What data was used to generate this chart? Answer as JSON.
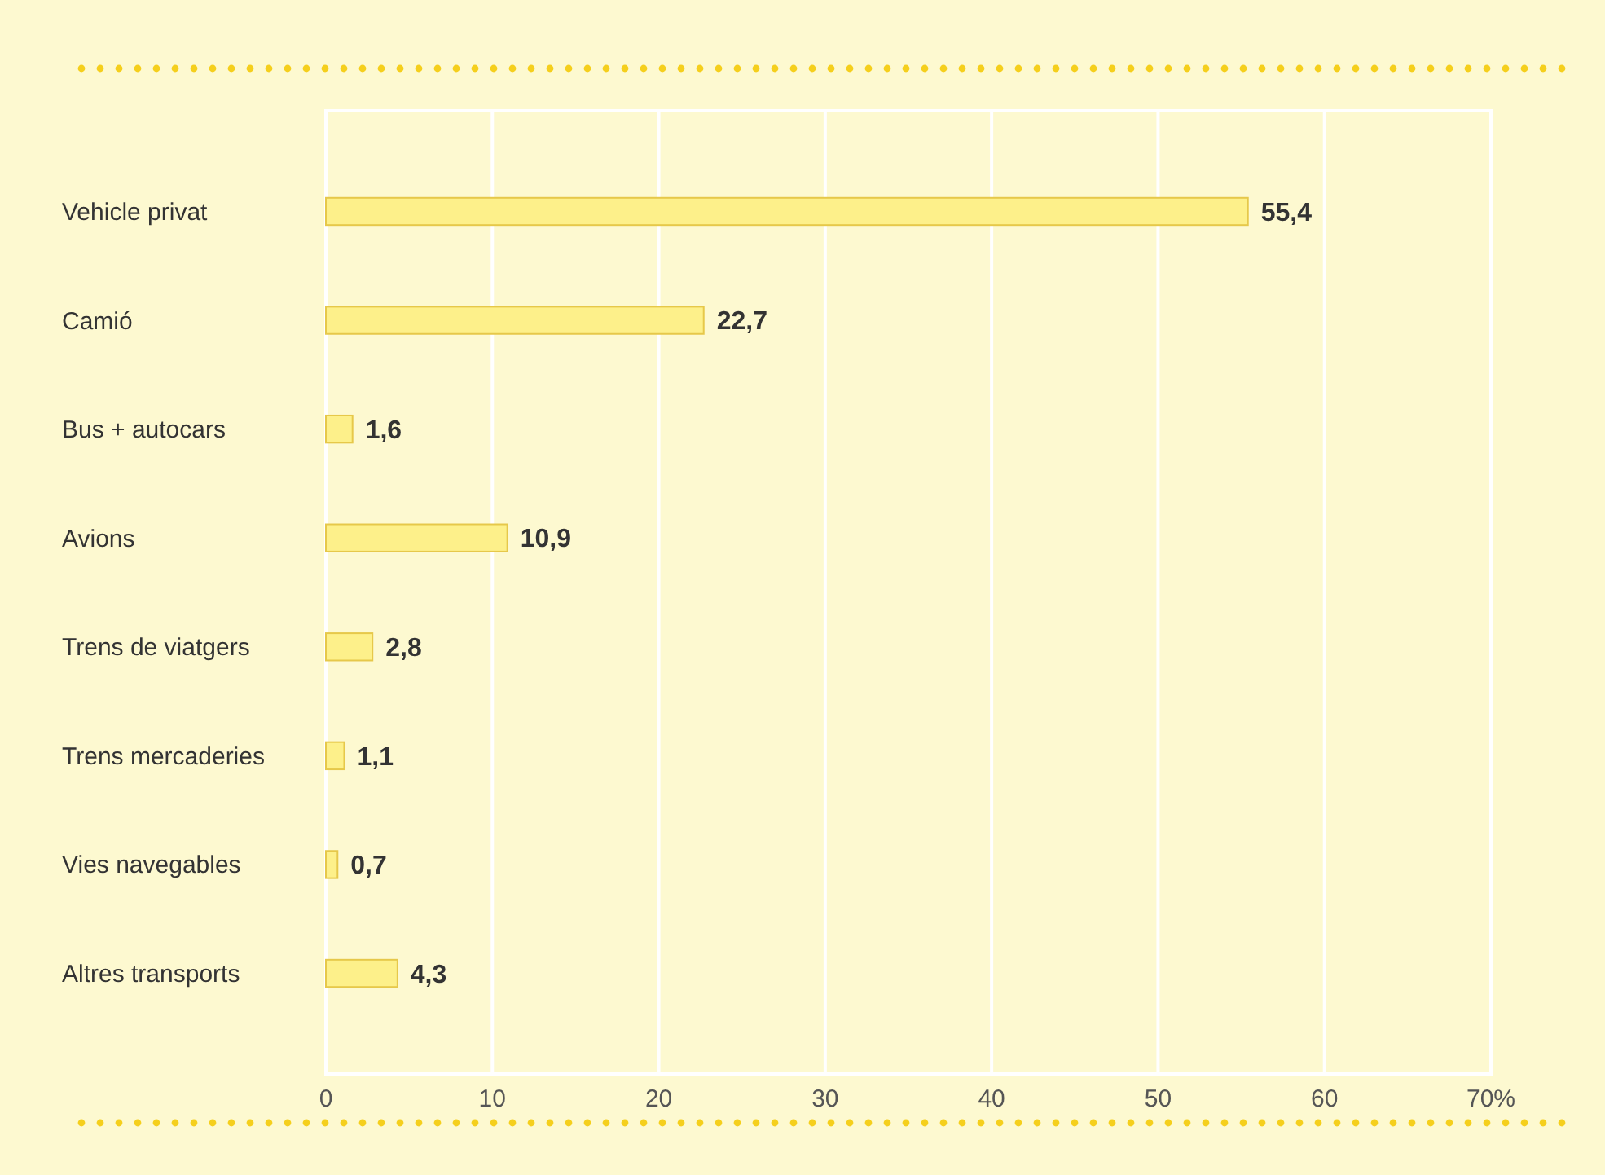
{
  "chart_data": {
    "type": "bar",
    "orientation": "horizontal",
    "categories": [
      "Vehicle privat",
      "Camió",
      "Bus + autocars",
      "Avions",
      "Trens de viatgers",
      "Trens mercaderies",
      "Vies navegables",
      "Altres transports"
    ],
    "values": [
      55.4,
      22.7,
      1.6,
      10.9,
      2.8,
      1.1,
      0.7,
      4.3
    ],
    "value_labels": [
      "55,4",
      "22,7",
      "1,6",
      "10,9",
      "2,8",
      "1,1",
      "0,7",
      "4,3"
    ],
    "color": "#fdf08a",
    "xlim": [
      0,
      70
    ],
    "xticks": [
      0,
      10,
      20,
      30,
      40,
      50,
      60,
      {
        "value": 70,
        "label": "70%"
      }
    ],
    "grid": "x"
  }
}
